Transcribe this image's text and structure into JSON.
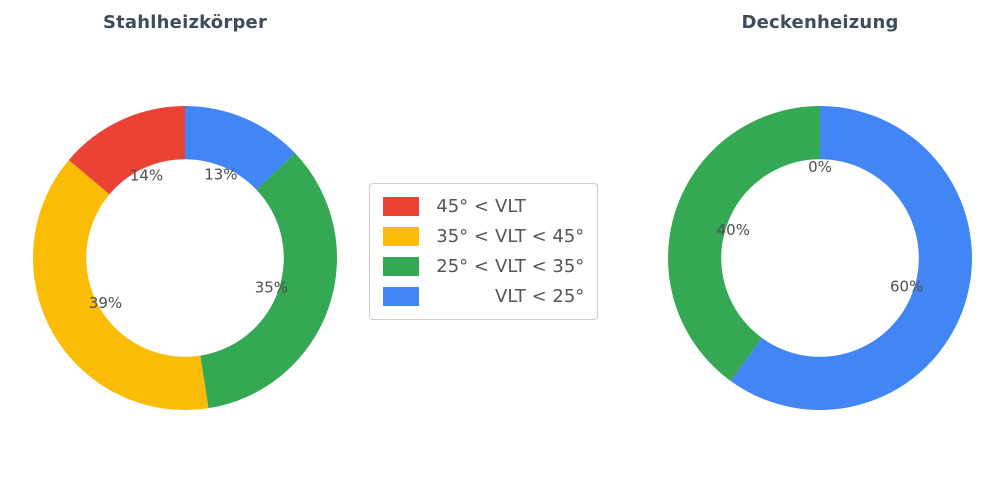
{
  "chart_data": [
    {
      "type": "pie",
      "title": "Stahlheizkörper",
      "labels": [
        "45° < VLT",
        "35° < VLT < 45°",
        "25° < VLT < 35°",
        "VLT < 25°"
      ],
      "values": [
        14,
        39,
        35,
        13
      ],
      "value_labels": [
        "14%",
        "39%",
        "35%",
        "13%"
      ],
      "colors": [
        "#EA4335",
        "#FBBC05",
        "#34A853",
        "#4285F4"
      ],
      "unit": "%",
      "hole": 0.65,
      "start_angle": 90,
      "direction": "counterclockwise"
    },
    {
      "type": "pie",
      "title": "Deckenheizung",
      "labels": [
        "45° < VLT",
        "25° < VLT < 35°",
        "VLT < 25°"
      ],
      "values": [
        0,
        40,
        60
      ],
      "value_labels": [
        "0%",
        "40%",
        "60%"
      ],
      "colors": [
        "#EA4335",
        "#34A853",
        "#4285F4"
      ],
      "unit": "%",
      "hole": 0.65,
      "start_angle": 90,
      "direction": "counterclockwise"
    }
  ],
  "legend": {
    "position": "center",
    "items": [
      {
        "label": "45° < VLT",
        "label_prefix": "45° <",
        "label_main": "VLT",
        "color": "#EA4335"
      },
      {
        "label": "35° < VLT < 45°",
        "label_prefix": "35° <",
        "label_main": "VLT < 45°",
        "color": "#FBBC05"
      },
      {
        "label": "25° < VLT < 35°",
        "label_prefix": "25° <",
        "label_main": "VLT < 35°",
        "color": "#34A853"
      },
      {
        "label": "VLT < 25°",
        "label_prefix": "",
        "label_main": "VLT < 25°",
        "color": "#4285F4"
      }
    ]
  },
  "styles": {
    "title_color": "#3e4c5d",
    "percent_label_color": "#4f4f4f",
    "legend_text_color": "#555555",
    "legend_border_color": "#cccccc",
    "background_color": "#ffffff"
  }
}
